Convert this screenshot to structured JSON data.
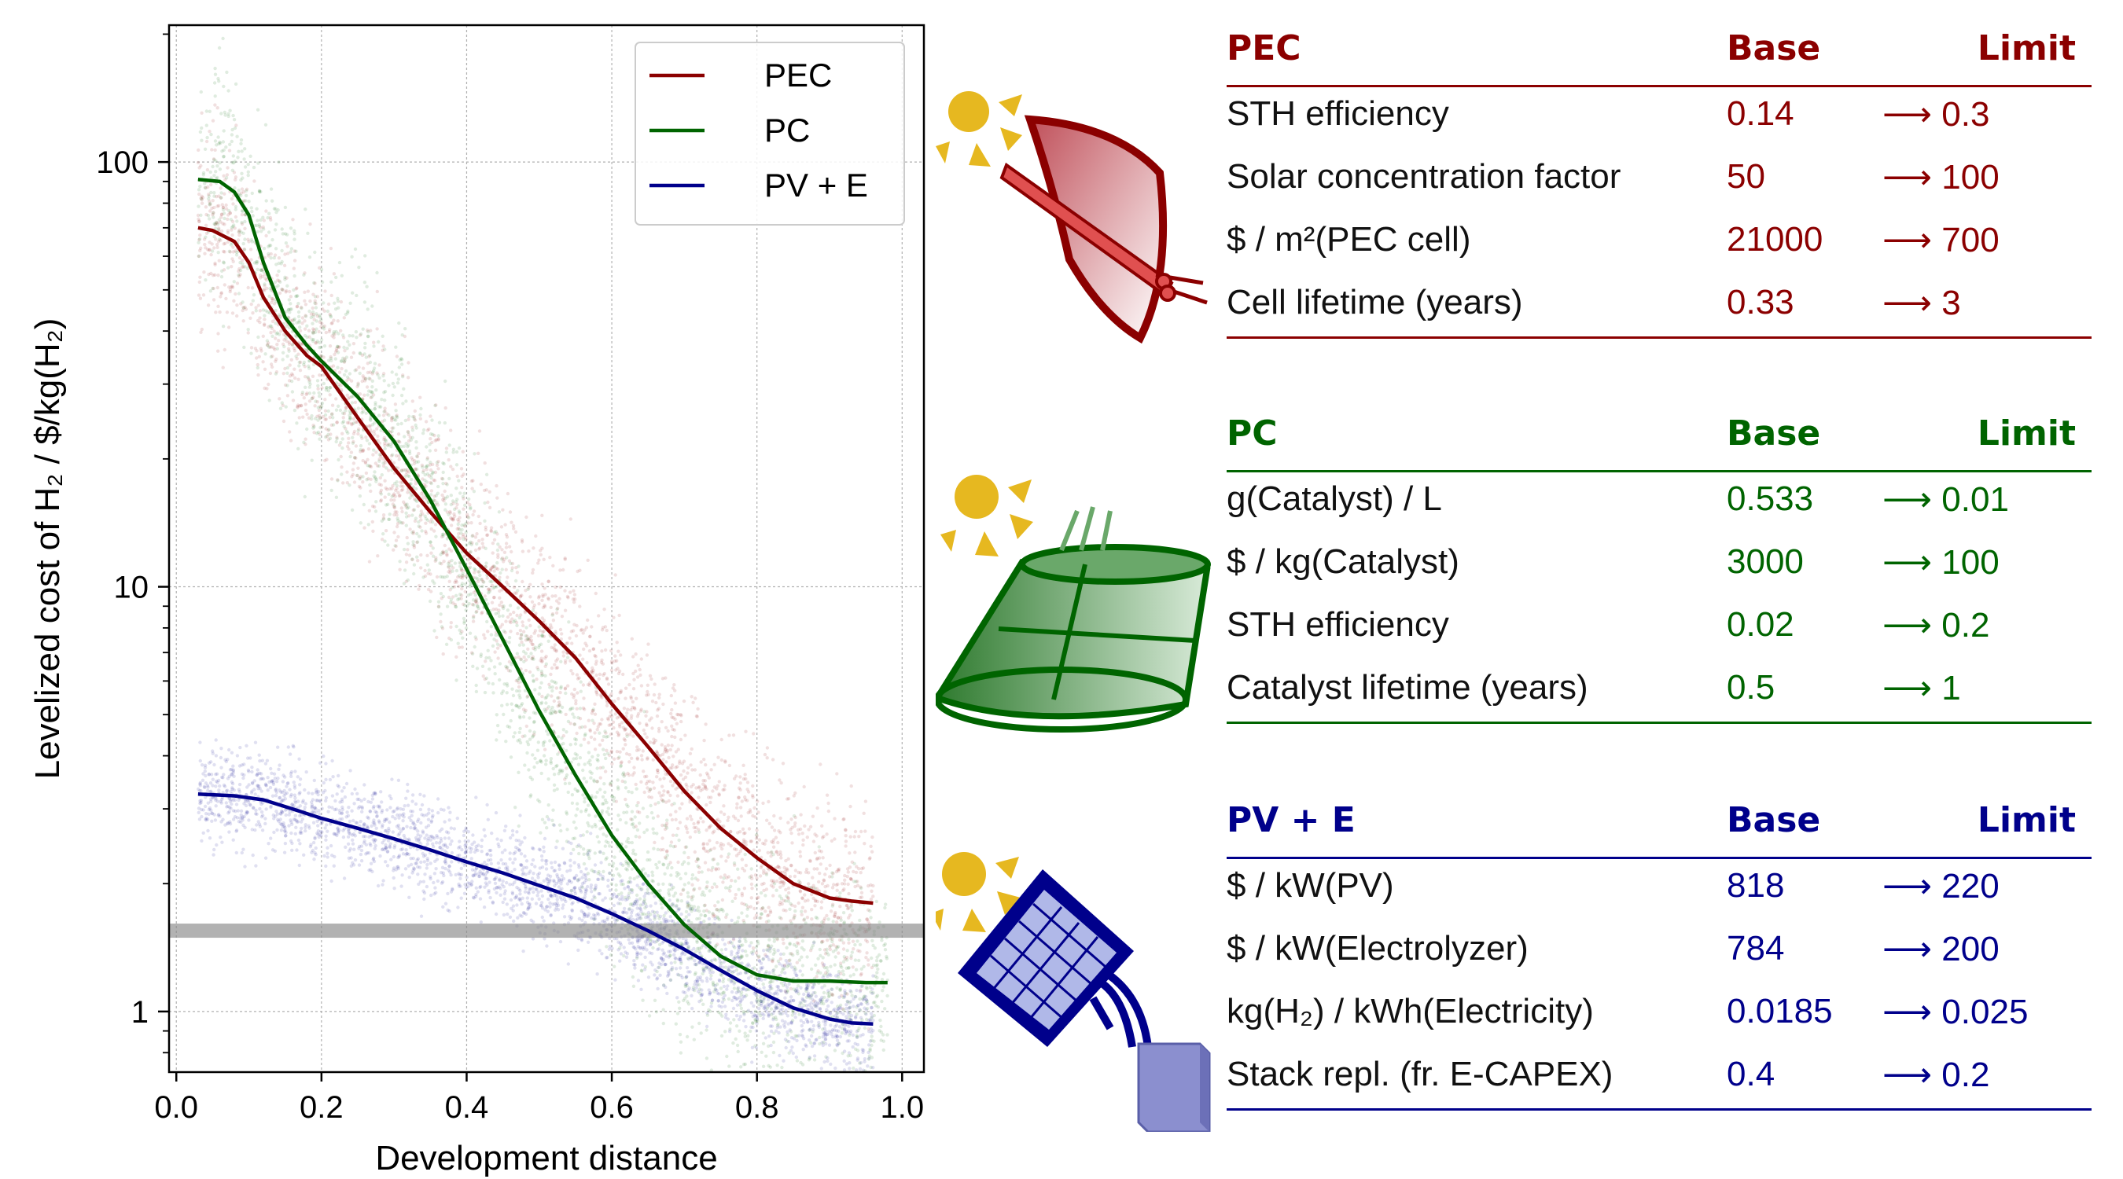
{
  "colors": {
    "pec": "#8b0000",
    "pc": "#006400",
    "pve": "#00008b",
    "threshold": "#888888"
  },
  "chart_data": {
    "type": "line",
    "xlabel": "Development distance",
    "ylabel": "Levelized cost of H₂ / $/kg(H₂)",
    "xlim": [
      -0.01,
      1.03
    ],
    "ylim": [
      0.72,
      210
    ],
    "yscale": "log",
    "grid": true,
    "legend_position": "top-right",
    "x_ticks": [
      "0.0",
      "0.2",
      "0.4",
      "0.6",
      "0.8",
      "1.0"
    ],
    "y_ticks": [
      "1",
      "10",
      "100"
    ],
    "threshold_line_y": 1.55,
    "series": [
      {
        "name": "PEC",
        "x": [
          0.03,
          0.05,
          0.08,
          0.1,
          0.12,
          0.15,
          0.18,
          0.2,
          0.25,
          0.3,
          0.35,
          0.4,
          0.45,
          0.5,
          0.55,
          0.6,
          0.65,
          0.7,
          0.75,
          0.8,
          0.85,
          0.9,
          0.93,
          0.96
        ],
        "y": [
          70,
          69,
          65,
          58,
          48,
          40,
          35,
          33,
          25,
          19,
          15,
          12,
          10,
          8.3,
          6.8,
          5.3,
          4.2,
          3.3,
          2.7,
          2.3,
          2.0,
          1.85,
          1.82,
          1.8
        ]
      },
      {
        "name": "PC",
        "x": [
          0.03,
          0.06,
          0.08,
          0.1,
          0.12,
          0.15,
          0.18,
          0.2,
          0.25,
          0.3,
          0.35,
          0.4,
          0.45,
          0.5,
          0.55,
          0.6,
          0.65,
          0.7,
          0.75,
          0.8,
          0.85,
          0.9,
          0.95,
          0.98
        ],
        "y": [
          91,
          90,
          85,
          75,
          58,
          43,
          37,
          34,
          28,
          22,
          16,
          11,
          7.5,
          5.1,
          3.6,
          2.6,
          2.0,
          1.6,
          1.35,
          1.22,
          1.18,
          1.18,
          1.17,
          1.17
        ]
      },
      {
        "name": "PV + E",
        "x": [
          0.03,
          0.08,
          0.12,
          0.16,
          0.2,
          0.25,
          0.3,
          0.35,
          0.4,
          0.45,
          0.5,
          0.55,
          0.6,
          0.65,
          0.7,
          0.75,
          0.8,
          0.85,
          0.9,
          0.93,
          0.96
        ],
        "y": [
          3.25,
          3.22,
          3.15,
          3.0,
          2.85,
          2.7,
          2.55,
          2.4,
          2.25,
          2.12,
          1.98,
          1.85,
          1.7,
          1.55,
          1.4,
          1.25,
          1.12,
          1.02,
          0.96,
          0.94,
          0.935
        ]
      }
    ]
  },
  "tables": [
    {
      "key": "pec",
      "title": "PEC",
      "base_header": "Base",
      "limit_header": "Limit",
      "rows": [
        {
          "name": "STH efficiency",
          "base": "0.14",
          "limit": "⟶ 0.3"
        },
        {
          "name": "Solar concentration factor",
          "base": "50",
          "limit": "⟶ 100"
        },
        {
          "name": "$ / m²(PEC cell)",
          "base": "21000",
          "limit": "⟶ 700"
        },
        {
          "name": "Cell lifetime (years)",
          "base": "0.33",
          "limit": "⟶ 3"
        }
      ]
    },
    {
      "key": "pc",
      "title": "PC",
      "base_header": "Base",
      "limit_header": "Limit",
      "rows": [
        {
          "name": "g(Catalyst) / L",
          "base": "0.533",
          "limit": "⟶ 0.01"
        },
        {
          "name": "$ / kg(Catalyst)",
          "base": "3000",
          "limit": "⟶ 100"
        },
        {
          "name": "STH efficiency",
          "base": "0.02",
          "limit": "⟶ 0.2"
        },
        {
          "name": "Catalyst lifetime (years)",
          "base": "0.5",
          "limit": "⟶ 1"
        }
      ]
    },
    {
      "key": "pve",
      "title": "PV + E",
      "base_header": "Base",
      "limit_header": "Limit",
      "rows": [
        {
          "name": "$ / kW(PV)",
          "base": "818",
          "limit": "⟶ 220"
        },
        {
          "name": "$ / kW(Electrolyzer)",
          "base": "784",
          "limit": "⟶ 200"
        },
        {
          "name": "kg(H₂) / kWh(Electricity)",
          "base": "0.0185",
          "limit": "⟶ 0.025"
        },
        {
          "name": "Stack repl. (fr. E-CAPEX)",
          "base": "0.4",
          "limit": "⟶ 0.2"
        }
      ]
    }
  ],
  "icons": [
    "pec-concentrator-icon",
    "pc-catalyst-basket-icon",
    "pv-electrolyzer-icon",
    "sun-icon"
  ]
}
